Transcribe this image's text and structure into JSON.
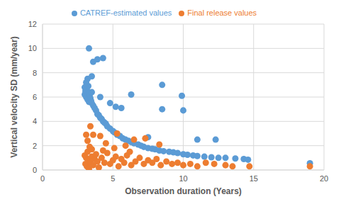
{
  "chart_data": {
    "type": "scatter",
    "x_label": "Observation duration (Years)",
    "y_label": "Vertical velocity SD (mm/year)",
    "xlim": [
      0,
      20
    ],
    "xticks": [
      0,
      5,
      10,
      15,
      20
    ],
    "ylim": [
      0,
      12
    ],
    "yticks": [
      0,
      2,
      4,
      6,
      8,
      10,
      12
    ],
    "grid": true,
    "legend": "top",
    "series": [
      {
        "name": "CATREF-estimated values",
        "color": "#5b9bd5",
        "marker": "circle",
        "x": [
          3.0,
          3.0,
          3.05,
          3.1,
          3.1,
          3.15,
          3.2,
          3.2,
          3.25,
          3.3,
          3.3,
          3.35,
          3.4,
          3.45,
          3.5,
          3.5,
          3.6,
          3.7,
          3.8,
          3.9,
          4.0,
          4.1,
          4.2,
          4.3,
          4.4,
          4.5,
          4.6,
          4.8,
          5.0,
          5.1,
          5.3,
          5.5,
          5.7,
          5.9,
          6.1,
          6.3,
          6.5,
          6.8,
          7.0,
          7.2,
          7.5,
          7.8,
          8.0,
          8.3,
          8.6,
          9.0,
          9.3,
          9.6,
          10.0,
          10.3,
          10.7,
          11.0,
          11.5,
          12.0,
          12.5,
          13.0,
          13.7,
          14.3,
          14.6,
          19.0,
          3.3,
          3.6,
          3.9,
          4.3,
          3.5,
          6.3,
          8.5,
          9.9,
          10.0,
          8.5,
          5.2,
          5.6,
          4.8,
          11.0,
          12.3,
          7.5,
          3.2,
          4.1
        ],
        "values": [
          6.8,
          6.2,
          6.5,
          7.2,
          6.0,
          6.6,
          6.4,
          5.8,
          6.9,
          6.3,
          5.6,
          6.1,
          5.9,
          5.7,
          5.5,
          6.4,
          5.3,
          5.1,
          4.9,
          4.6,
          4.5,
          4.3,
          4.2,
          4.0,
          3.9,
          3.8,
          3.6,
          3.4,
          3.2,
          3.1,
          2.9,
          2.8,
          2.6,
          2.5,
          2.4,
          2.3,
          2.2,
          2.1,
          2.0,
          1.9,
          1.8,
          1.75,
          1.7,
          1.6,
          1.55,
          1.5,
          1.45,
          1.4,
          1.3,
          1.25,
          1.2,
          1.15,
          1.1,
          1.05,
          1.0,
          1.0,
          0.95,
          0.9,
          0.85,
          0.55,
          10.0,
          8.9,
          9.1,
          9.2,
          7.7,
          6.2,
          7.0,
          6.1,
          4.9,
          5.0,
          5.2,
          5.1,
          5.5,
          2.5,
          2.5,
          2.7,
          7.5,
          6.0
        ]
      },
      {
        "name": "Final release values",
        "color": "#ed7d31",
        "marker": "circle",
        "x": [
          3.0,
          3.05,
          3.1,
          3.15,
          3.2,
          3.25,
          3.3,
          3.35,
          3.4,
          3.5,
          3.6,
          3.7,
          3.8,
          3.9,
          4.0,
          4.2,
          4.4,
          4.6,
          4.8,
          5.0,
          5.2,
          5.4,
          5.6,
          5.8,
          6.0,
          6.3,
          6.6,
          6.9,
          7.2,
          7.5,
          7.8,
          8.1,
          8.4,
          8.8,
          9.2,
          9.6,
          10.0,
          10.5,
          11.0,
          11.6,
          12.2,
          13.0,
          13.5,
          14.7,
          19.0,
          3.4,
          3.6,
          3.1,
          4.1,
          6.5,
          5.9,
          5.3,
          7.3,
          8.3,
          4.5,
          3.2,
          3.5,
          4.3,
          5.1,
          6.2
        ],
        "values": [
          1.2,
          0.5,
          1.0,
          0.3,
          1.5,
          0.8,
          0.1,
          1.9,
          0.6,
          1.1,
          0.4,
          0.9,
          1.3,
          0.7,
          0.2,
          1.0,
          0.6,
          1.4,
          0.5,
          0.8,
          1.1,
          0.3,
          0.9,
          0.6,
          1.2,
          0.4,
          0.7,
          1.0,
          0.5,
          0.8,
          0.6,
          0.9,
          0.4,
          0.7,
          0.5,
          0.6,
          0.4,
          0.5,
          0.3,
          0.6,
          0.5,
          0.4,
          0.3,
          0.3,
          0.3,
          3.6,
          2.9,
          2.9,
          2.8,
          2.5,
          2.0,
          3.0,
          2.6,
          2.1,
          2.2,
          2.4,
          1.7,
          1.6,
          1.8,
          1.5
        ]
      }
    ]
  }
}
